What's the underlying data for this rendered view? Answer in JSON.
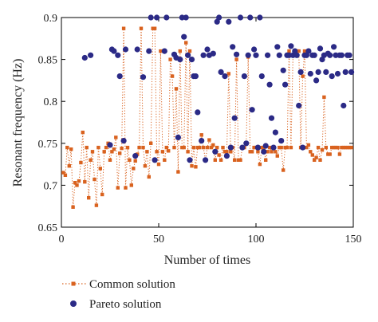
{
  "chart_data": {
    "type": "line",
    "title": "",
    "xlabel": "Number of times",
    "ylabel": "Resonant frequency (Hz)",
    "xlim": [
      0,
      150
    ],
    "ylim": [
      0.65,
      0.9
    ],
    "xticks": [
      0,
      50,
      100,
      150
    ],
    "yticks": [
      0.65,
      0.7,
      0.75,
      0.8,
      0.85,
      0.9
    ],
    "grid": false,
    "legend_position": "bottom-left",
    "colors": {
      "common": "#d9621f",
      "pareto": "#2b2a86",
      "axis": "#000000"
    },
    "x": [
      1,
      2,
      3,
      4,
      5,
      6,
      7,
      8,
      9,
      10,
      11,
      12,
      13,
      14,
      15,
      16,
      17,
      18,
      19,
      20,
      21,
      22,
      23,
      24,
      25,
      26,
      27,
      28,
      29,
      30,
      31,
      32,
      33,
      34,
      35,
      36,
      37,
      38,
      39,
      40,
      41,
      42,
      43,
      44,
      45,
      46,
      47,
      48,
      49,
      50,
      51,
      52,
      53,
      54,
      55,
      56,
      57,
      58,
      59,
      60,
      61,
      62,
      63,
      64,
      65,
      66,
      67,
      68,
      69,
      70,
      71,
      72,
      73,
      74,
      75,
      76,
      77,
      78,
      79,
      80,
      81,
      82,
      83,
      84,
      85,
      86,
      87,
      88,
      89,
      90,
      91,
      92,
      93,
      94,
      95,
      96,
      97,
      98,
      99,
      100,
      101,
      102,
      103,
      104,
      105,
      106,
      107,
      108,
      109,
      110,
      111,
      112,
      113,
      114,
      115,
      116,
      117,
      118,
      119,
      120,
      121,
      122,
      123,
      124,
      125,
      126,
      127,
      128,
      129,
      130,
      131,
      132,
      133,
      134,
      135,
      136,
      137,
      138,
      139,
      140,
      141,
      142,
      143,
      144,
      145,
      146,
      147,
      148,
      149
    ],
    "series": [
      {
        "name": "Common solution",
        "marker": "square",
        "line": "dotted",
        "values": [
          0.715,
          0.712,
          0.745,
          0.723,
          0.743,
          0.674,
          0.703,
          0.7,
          0.705,
          0.727,
          0.763,
          0.704,
          0.745,
          0.685,
          0.73,
          0.74,
          0.707,
          0.676,
          0.745,
          0.72,
          0.689,
          0.74,
          0.745,
          0.75,
          0.73,
          0.74,
          0.743,
          0.757,
          0.697,
          0.738,
          0.744,
          0.887,
          0.697,
          0.745,
          0.73,
          0.7,
          0.72,
          0.729,
          0.737,
          0.745,
          0.887,
          0.745,
          0.723,
          0.74,
          0.71,
          0.75,
          0.887,
          0.887,
          0.74,
          0.725,
          0.86,
          0.74,
          0.73,
          0.745,
          0.741,
          0.85,
          0.83,
          0.745,
          0.815,
          0.716,
          0.86,
          0.745,
          0.745,
          0.87,
          0.74,
          0.86,
          0.723,
          0.745,
          0.722,
          0.745,
          0.745,
          0.76,
          0.745,
          0.73,
          0.745,
          0.754,
          0.745,
          0.748,
          0.73,
          0.745,
          0.736,
          0.73,
          0.745,
          0.74,
          0.74,
          0.833,
          0.74,
          0.745,
          0.73,
          0.85,
          0.73,
          0.73,
          0.745,
          0.745,
          0.75,
          0.853,
          0.74,
          0.74,
          0.745,
          0.745,
          0.74,
          0.725,
          0.745,
          0.745,
          0.73,
          0.74,
          0.745,
          0.74,
          0.745,
          0.74,
          0.735,
          0.745,
          0.745,
          0.718,
          0.745,
          0.745,
          0.86,
          0.745,
          0.855,
          0.86,
          0.86,
          0.86,
          0.745,
          0.83,
          0.86,
          0.745,
          0.748,
          0.74,
          0.736,
          0.73,
          0.733,
          0.745,
          0.73,
          0.742,
          0.805,
          0.745,
          0.737,
          0.737,
          0.745,
          0.745,
          0.745,
          0.745,
          0.737,
          0.745,
          0.745,
          0.745,
          0.745,
          0.745,
          0.745
        ]
      },
      {
        "name": "Pareto solution",
        "marker": "circle",
        "line": "none",
        "values": [
          null,
          null,
          null,
          null,
          null,
          null,
          null,
          null,
          null,
          null,
          null,
          0.852,
          null,
          null,
          0.855,
          null,
          null,
          null,
          null,
          null,
          null,
          null,
          null,
          null,
          0.748,
          0.862,
          0.86,
          null,
          0.855,
          0.83,
          null,
          0.753,
          0.862,
          null,
          null,
          null,
          null,
          0.735,
          0.862,
          null,
          null,
          0.829,
          null,
          null,
          0.86,
          0.9,
          null,
          0.73,
          0.9,
          null,
          null,
          null,
          0.86,
          0.9,
          null,
          null,
          null,
          0.856,
          0.852,
          0.757,
          0.85,
          0.9,
          0.877,
          0.9,
          0.855,
          0.73,
          0.85,
          0.83,
          0.83,
          0.787,
          null,
          0.753,
          0.855,
          0.73,
          0.862,
          0.855,
          null,
          0.857,
          0.74,
          0.895,
          0.9,
          0.835,
          null,
          0.83,
          0.735,
          0.895,
          0.745,
          0.865,
          0.78,
          0.856,
          null,
          0.9,
          0.745,
          0.83,
          0.75,
          0.855,
          0.9,
          0.79,
          0.862,
          0.855,
          0.745,
          0.9,
          0.83,
          0.74,
          0.747,
          0.855,
          0.82,
          0.78,
          0.745,
          0.763,
          0.865,
          0.855,
          0.753,
          0.837,
          0.82,
          0.855,
          0.855,
          0.866,
          0.855,
          0.86,
          0.855,
          0.795,
          0.835,
          0.745,
          0.855,
          0.855,
          0.86,
          0.833,
          0.855,
          0.855,
          0.825,
          0.835,
          0.863,
          0.85,
          0.855,
          0.835,
          0.857,
          0.855,
          0.83,
          0.865,
          0.855,
          0.833,
          0.855,
          0.855,
          0.795,
          0.835,
          0.855,
          0.855,
          0.835
        ]
      }
    ]
  }
}
